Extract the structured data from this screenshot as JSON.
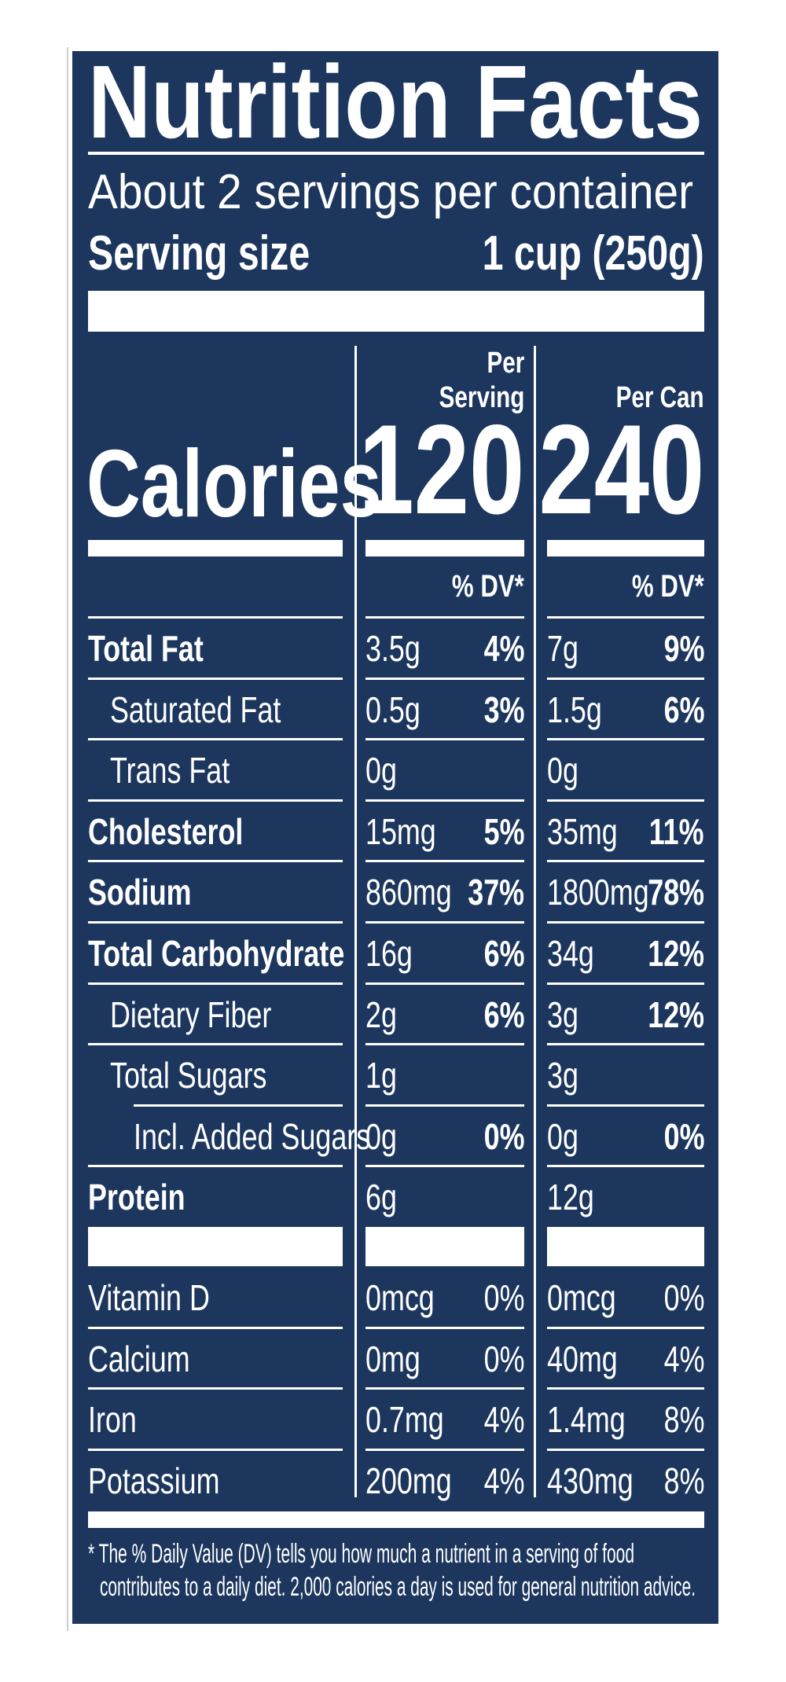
{
  "title": "Nutrition Facts",
  "servings_per_container": "About 2 servings per container",
  "serving_size": {
    "label": "Serving size",
    "value": "1 cup (250g)"
  },
  "columns": {
    "per_serving_line1": "Per",
    "per_serving_line2": "Serving",
    "per_can": "Per Can",
    "dv_header": "% DV*"
  },
  "calories": {
    "label": "Calories",
    "per_serving": "120",
    "per_can": "240"
  },
  "nutrients": [
    {
      "name": "Total Fat",
      "level": 0,
      "serving_amount": "3.5g",
      "serving_dv": "4%",
      "can_amount": "7g",
      "can_dv": "9%"
    },
    {
      "name": "Saturated Fat",
      "level": 1,
      "serving_amount": "0.5g",
      "serving_dv": "3%",
      "can_amount": "1.5g",
      "can_dv": "6%"
    },
    {
      "name": "Trans Fat",
      "level": 1,
      "serving_amount": "0g",
      "serving_dv": "",
      "can_amount": "0g",
      "can_dv": ""
    },
    {
      "name": "Cholesterol",
      "level": 0,
      "serving_amount": "15mg",
      "serving_dv": "5%",
      "can_amount": "35mg",
      "can_dv": "11%"
    },
    {
      "name": "Sodium",
      "level": 0,
      "serving_amount": "860mg",
      "serving_dv": "37%",
      "can_amount": "1800mg",
      "can_dv": "78%"
    },
    {
      "name": "Total Carbohydrate",
      "level": 0,
      "serving_amount": "16g",
      "serving_dv": "6%",
      "can_amount": "34g",
      "can_dv": "12%"
    },
    {
      "name": "Dietary Fiber",
      "level": 1,
      "serving_amount": "2g",
      "serving_dv": "6%",
      "can_amount": "3g",
      "can_dv": "12%"
    },
    {
      "name": "Total Sugars",
      "level": 1,
      "serving_amount": "1g",
      "serving_dv": "",
      "can_amount": "3g",
      "can_dv": ""
    },
    {
      "name": "Incl. Added Sugars",
      "level": 2,
      "serving_amount": "0g",
      "serving_dv": "0%",
      "can_amount": "0g",
      "can_dv": "0%"
    },
    {
      "name": "Protein",
      "level": 0,
      "serving_amount": "6g",
      "serving_dv": "",
      "can_amount": "12g",
      "can_dv": ""
    }
  ],
  "vitamins": [
    {
      "name": "Vitamin D",
      "serving_amount": "0mcg",
      "serving_dv": "0%",
      "can_amount": "0mcg",
      "can_dv": "0%"
    },
    {
      "name": "Calcium",
      "serving_amount": "0mg",
      "serving_dv": "0%",
      "can_amount": "40mg",
      "can_dv": "4%"
    },
    {
      "name": "Iron",
      "serving_amount": "0.7mg",
      "serving_dv": "4%",
      "can_amount": "1.4mg",
      "can_dv": "8%"
    },
    {
      "name": "Potassium",
      "serving_amount": "200mg",
      "serving_dv": "4%",
      "can_amount": "430mg",
      "can_dv": "8%"
    }
  ],
  "footnote": {
    "line1": "* The % Daily Value (DV) tells you how much a nutrient in a serving of food",
    "line2": "contributes to a daily diet. 2,000 calories a day is used for general nutrition advice."
  }
}
